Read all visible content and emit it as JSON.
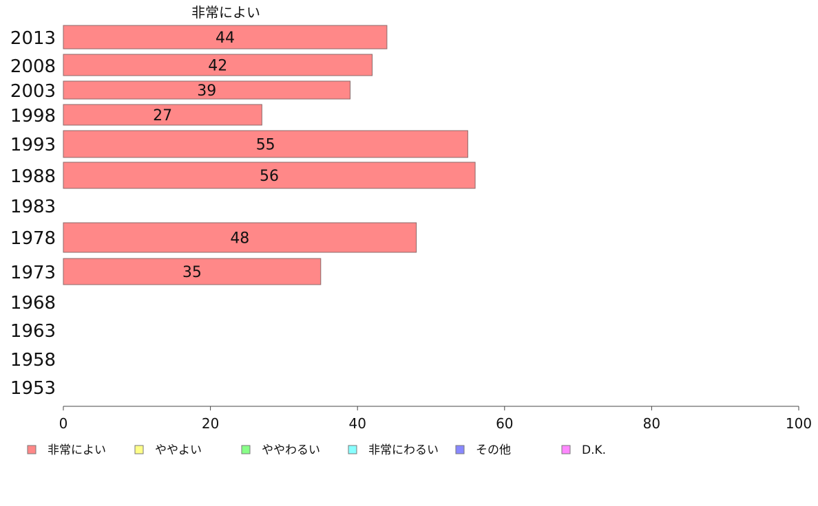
{
  "chart_data": {
    "type": "bar",
    "orientation": "horizontal",
    "stacked": true,
    "column_title": "非常によい",
    "categories": [
      "2013",
      "2008",
      "2003",
      "1998",
      "1993",
      "1988",
      "1983",
      "1978",
      "1973",
      "1968",
      "1963",
      "1958",
      "1953"
    ],
    "series": [
      {
        "name": "非常によい",
        "color": "#ff8888",
        "values": [
          44,
          42,
          39,
          27,
          55,
          56,
          null,
          48,
          35,
          null,
          null,
          null,
          null
        ]
      },
      {
        "name": "ややよい",
        "color": "#ffff88",
        "values": [
          null,
          null,
          null,
          null,
          null,
          null,
          null,
          null,
          null,
          null,
          null,
          null,
          null
        ]
      },
      {
        "name": "ややわるい",
        "color": "#88ff88",
        "values": [
          null,
          null,
          null,
          null,
          null,
          null,
          null,
          null,
          null,
          null,
          null,
          null,
          null
        ]
      },
      {
        "name": "非常にわるい",
        "color": "#88ffff",
        "values": [
          null,
          null,
          null,
          null,
          null,
          null,
          null,
          null,
          null,
          null,
          null,
          null,
          null
        ]
      },
      {
        "name": "その他",
        "color": "#8888ff",
        "values": [
          null,
          null,
          null,
          null,
          null,
          null,
          null,
          null,
          null,
          null,
          null,
          null,
          null
        ]
      },
      {
        "name": "D.K.",
        "color": "#ff88ff",
        "values": [
          null,
          null,
          null,
          null,
          null,
          null,
          null,
          null,
          null,
          null,
          null,
          null,
          null
        ]
      }
    ],
    "xlim": [
      0,
      100
    ],
    "xticks": [
      0,
      20,
      40,
      60,
      80,
      100
    ],
    "grid": false,
    "legend_position": "bottom"
  }
}
